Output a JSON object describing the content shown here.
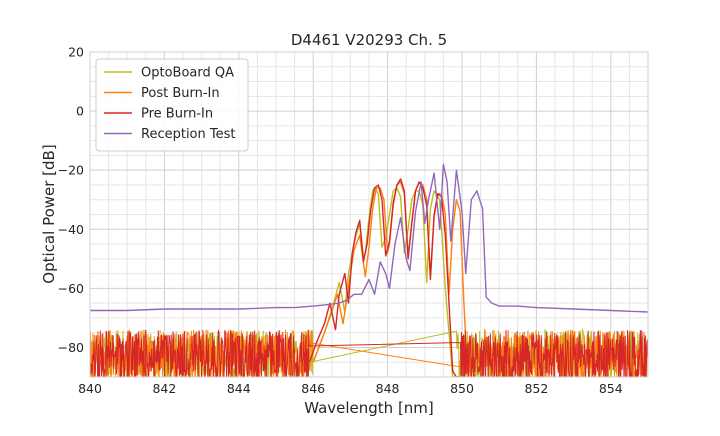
{
  "chart_data": {
    "type": "line",
    "title": "D4461 V20293 Ch. 5",
    "xlabel": "Wavelength [nm]",
    "ylabel": "Optical Power [dB]",
    "xlim": [
      840,
      855
    ],
    "ylim": [
      -90,
      20
    ],
    "xticks": [
      840,
      842,
      844,
      846,
      848,
      850,
      852,
      854
    ],
    "yticks": [
      20,
      0,
      -20,
      -40,
      -60,
      -80
    ],
    "xtick_labels": [
      "840",
      "842",
      "844",
      "846",
      "848",
      "850",
      "852",
      "854"
    ],
    "ytick_labels": [
      "20",
      "0",
      "−20",
      "−40",
      "−60",
      "−80"
    ],
    "grid": true,
    "legend_position": "top-left",
    "series": [
      {
        "name": "OptoBoard QA",
        "color": "#bcbd22",
        "noise_floor": true,
        "x": [
          846.0,
          846.3,
          846.55,
          846.7,
          846.85,
          846.95,
          847.05,
          847.15,
          847.25,
          847.35,
          847.4,
          847.5,
          847.6,
          847.65,
          847.75,
          847.85,
          847.95,
          848.05,
          848.15,
          848.25,
          848.35,
          848.45,
          848.55,
          848.65,
          848.75,
          848.85,
          848.95,
          849.05,
          849.15,
          849.25,
          849.4,
          849.55,
          849.65,
          849.75,
          849.85
        ],
        "y": [
          -85,
          -75,
          -65,
          -58,
          -68,
          -55,
          -48,
          -42,
          -38,
          -49,
          -48,
          -36,
          -27,
          -26,
          -28,
          -46,
          -43,
          -35,
          -27,
          -26,
          -29,
          -48,
          -40,
          -30,
          -27,
          -27,
          -32,
          -58,
          -33,
          -27,
          -30,
          -60,
          -75,
          -90,
          -90
        ]
      },
      {
        "name": "Post Burn-In",
        "color": "#ff7f0e",
        "noise_floor": true,
        "x": [
          846.0,
          846.3,
          846.5,
          846.65,
          846.8,
          846.9,
          847.0,
          847.1,
          847.25,
          847.4,
          847.5,
          847.6,
          847.7,
          847.8,
          847.9,
          848.0,
          848.05,
          848.15,
          848.25,
          848.35,
          848.45,
          848.55,
          848.65,
          848.75,
          848.85,
          848.95,
          849.05,
          849.15,
          849.25,
          849.35,
          849.45,
          849.55,
          849.65,
          849.75,
          849.85,
          849.95,
          850.05,
          850.15
        ],
        "y": [
          -85,
          -75,
          -68,
          -62,
          -72,
          -64,
          -55,
          -47,
          -42,
          -56,
          -46,
          -33,
          -26,
          -26,
          -30,
          -48,
          -45,
          -32,
          -25,
          -24,
          -28,
          -49,
          -38,
          -27,
          -24,
          -25,
          -30,
          -56,
          -36,
          -28,
          -28,
          -35,
          -62,
          -40,
          -30,
          -34,
          -65,
          -90
        ]
      },
      {
        "name": "Pre Burn-In",
        "color": "#d62728",
        "noise_floor": true,
        "x": [
          845.9,
          846.1,
          846.3,
          846.45,
          846.6,
          846.7,
          846.85,
          846.95,
          847.05,
          847.15,
          847.25,
          847.35,
          847.45,
          847.55,
          847.65,
          847.75,
          847.85,
          847.95,
          848.05,
          848.15,
          848.25,
          848.35,
          848.45,
          848.55,
          848.65,
          848.75,
          848.85,
          848.95,
          849.05,
          849.15,
          849.25,
          849.35,
          849.45,
          849.55,
          849.65,
          849.75,
          849.85,
          849.95
        ],
        "y": [
          -85,
          -78,
          -72,
          -65,
          -74,
          -62,
          -55,
          -65,
          -48,
          -41,
          -37,
          -51,
          -45,
          -33,
          -26,
          -25,
          -30,
          -49,
          -44,
          -31,
          -25,
          -23,
          -27,
          -50,
          -38,
          -27,
          -24,
          -26,
          -32,
          -57,
          -35,
          -28,
          -29,
          -42,
          -65,
          -88,
          -90,
          -90
        ]
      },
      {
        "name": "Reception Test",
        "color": "#9467bd",
        "noise_floor": false,
        "x": [
          840.0,
          841.0,
          842.0,
          843.0,
          844.0,
          845.0,
          845.5,
          846.0,
          846.4,
          846.7,
          846.9,
          847.1,
          847.3,
          847.5,
          847.65,
          847.8,
          847.95,
          848.05,
          848.2,
          848.35,
          848.5,
          848.6,
          848.75,
          848.9,
          849.0,
          849.1,
          849.25,
          849.4,
          849.5,
          849.6,
          849.7,
          849.85,
          850.0,
          850.1,
          850.25,
          850.4,
          850.55,
          850.65,
          850.8,
          851.0,
          851.5,
          852.0,
          853.0,
          854.0,
          855.0
        ],
        "y": [
          -67.5,
          -67.5,
          -67,
          -67,
          -67,
          -66.5,
          -66.5,
          -66,
          -65.5,
          -65,
          -64,
          -62,
          -62,
          -57,
          -62,
          -51,
          -55,
          -60,
          -45,
          -36,
          -50,
          -54,
          -34,
          -24,
          -38,
          -30,
          -21,
          -40,
          -18,
          -24,
          -44,
          -20,
          -34,
          -55,
          -30,
          -27,
          -33,
          -63,
          -65,
          -66,
          -66,
          -66.5,
          -67,
          -67.5,
          -68
        ]
      }
    ]
  }
}
